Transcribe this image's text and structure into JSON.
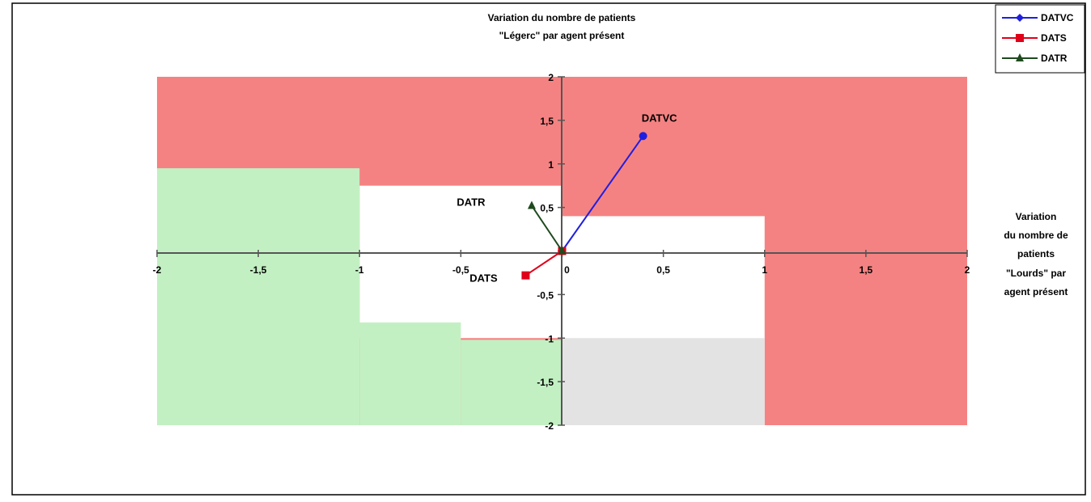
{
  "chart_data": {
    "type": "scatter",
    "title": "",
    "y_axis_title": [
      "Variation du nombre de patients",
      "\"Légerc\" par agent présent"
    ],
    "x_axis_title": [
      "Variation",
      "du nombre de",
      "patients",
      "\"Lourds\" par",
      "agent présent"
    ],
    "xlim": [
      -2,
      2
    ],
    "ylim": [
      -2,
      2
    ],
    "x_ticks": [
      "-2",
      "-1,5",
      "-1",
      "-0,5",
      "0",
      "0,5",
      "1",
      "1,5",
      "2"
    ],
    "y_ticks": [
      "-2",
      "-1,5",
      "-1",
      "-0,5",
      "0",
      "0,5",
      "1",
      "1,5",
      "2"
    ],
    "grid": false,
    "legend_position": "top-right",
    "series": [
      {
        "name": "DATVC",
        "color": "#1f1fe0",
        "marker": "diamond",
        "points": [
          {
            "x": 0,
            "y": 0
          },
          {
            "x": 0.4,
            "y": 1.32
          }
        ],
        "point_label": "DATVC"
      },
      {
        "name": "DATS",
        "color": "#e0001a",
        "marker": "square",
        "points": [
          {
            "x": 0,
            "y": 0
          },
          {
            "x": -0.18,
            "y": -0.28
          }
        ],
        "point_label": "DATS"
      },
      {
        "name": "DATR",
        "color": "#1e4a1e",
        "marker": "triangle",
        "points": [
          {
            "x": 0,
            "y": 0
          },
          {
            "x": -0.15,
            "y": 0.52
          }
        ],
        "point_label": "DATR"
      }
    ],
    "regions": [
      {
        "kind": "red",
        "color": "#f58282",
        "x0": -2,
        "x1": 2,
        "y0": -2,
        "y1": 2
      },
      {
        "kind": "white",
        "color": "#ffffff",
        "x0": -1,
        "x1": 0,
        "y0": -1,
        "y1": 0.75
      },
      {
        "kind": "white",
        "color": "#ffffff",
        "x0": 0,
        "x1": 1,
        "y0": -2,
        "y1": 0.4
      },
      {
        "kind": "green",
        "color": "#c3f0c3",
        "x0": -2,
        "x1": -1,
        "y0": -2,
        "y1": 0.95
      },
      {
        "kind": "green",
        "color": "#c3f0c3",
        "x0": -1,
        "x1": -0.5,
        "y0": -2,
        "y1": -0.82
      },
      {
        "kind": "green",
        "color": "#c3f0c3",
        "x0": -0.5,
        "x1": 0,
        "y0": -2,
        "y1": -1.02
      },
      {
        "kind": "grey",
        "color": "#e3e3e3",
        "x0": 0,
        "x1": 1,
        "y0": -2,
        "y1": -1.0
      }
    ]
  }
}
